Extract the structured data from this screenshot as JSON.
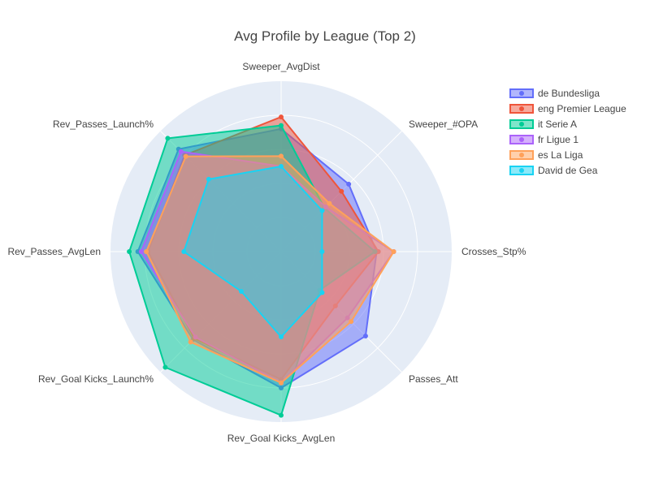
{
  "chart_data": {
    "type": "radar",
    "title": "Avg Profile by League (Top 2)",
    "axes": [
      "Sweeper_AvgDist",
      "Sweeper_#OPA",
      "Crosses_Stp%",
      "Passes_Att",
      "Rev_Goal Kicks_AvgLen",
      "Rev_Goal Kicks_Launch%",
      "Rev_Passes_AvgLen",
      "Rev_Passes_Launch%"
    ],
    "rlim": [
      0,
      1
    ],
    "grid": true,
    "legend_position": "top-right",
    "series": [
      {
        "name": "de Bundesliga",
        "color": "#636efa",
        "values": [
          0.72,
          0.56,
          0.56,
          0.7,
          0.8,
          0.73,
          0.84,
          0.85
        ]
      },
      {
        "name": "eng Premier League",
        "color": "#ef553b",
        "values": [
          0.79,
          0.5,
          0.57,
          0.45,
          0.75,
          0.72,
          0.78,
          0.8
        ]
      },
      {
        "name": "it Serie A",
        "color": "#00cc96",
        "values": [
          0.74,
          0.36,
          0.55,
          0.32,
          0.96,
          0.96,
          0.89,
          0.94
        ]
      },
      {
        "name": "fr Ligue 1",
        "color": "#ab63fa",
        "values": [
          0.5,
          0.37,
          0.66,
          0.55,
          0.77,
          0.71,
          0.82,
          0.83
        ]
      },
      {
        "name": "es La Liga",
        "color": "#ffa15a",
        "values": [
          0.56,
          0.4,
          0.66,
          0.58,
          0.77,
          0.75,
          0.79,
          0.79
        ]
      },
      {
        "name": "David de Gea",
        "color": "#19d3f3",
        "values": [
          0.5,
          0.34,
          0.24,
          0.34,
          0.5,
          0.33,
          0.57,
          0.6
        ]
      }
    ]
  }
}
